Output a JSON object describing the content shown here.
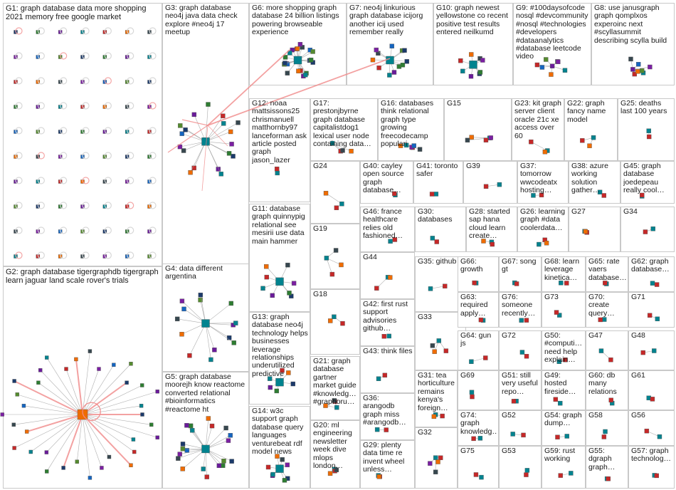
{
  "groups": [
    {
      "id": "G1",
      "title": "G1: graph database data more shopping 2021 memory free google market"
    },
    {
      "id": "G2",
      "title": "G2: graph database tigergraphdb tigergraph learn jaguar land scale rover's trials"
    },
    {
      "id": "G3",
      "title": "G3: graph database neo4j java data check explore #neo4j 17 meetup"
    },
    {
      "id": "G4",
      "title": "G4: data different argentina"
    },
    {
      "id": "G5",
      "title": "G5: graph database moorejh know reactome converted relational #bioinformatics #reactome ht"
    },
    {
      "id": "G6",
      "title": "G6: more shopping graph database 24 billion listings powering browseable experience"
    },
    {
      "id": "G7",
      "title": "G7: neo4j linkurious graph database icijorg another icij used remember really"
    },
    {
      "id": "G8",
      "title": "G8: use janusgraph graph qomplxos experoinc next #scyllasummit describing scylla build"
    },
    {
      "id": "G9",
      "title": "G9: #100daysofcode nosql #devcommunity #nosql #technologies #developers #dataanalytics #database leetcode video"
    },
    {
      "id": "G10",
      "title": "G10: graph newest yellowstone co recent positive test results entered neilkumd"
    },
    {
      "id": "G11",
      "title": "G11: database graph quinnypig relational see mesirii use data main hammer"
    },
    {
      "id": "G12",
      "title": "G12: noaa mattsissons25 chrismanuell matthornby97 lanceforman ask article posted graph jason_lazer"
    },
    {
      "id": "G13",
      "title": "G13: graph database neo4j technology helps businesses leverage relationships underutilized predictive"
    },
    {
      "id": "G14",
      "title": "G14: w3c support graph database query languages venturebeat rdf model news"
    },
    {
      "id": "G15",
      "title": "G15"
    },
    {
      "id": "G16",
      "title": "G16: databases think relational graph type growing freecodecamp populari"
    },
    {
      "id": "G17",
      "title": "G17: prestonjbyrne graph database capitalistdog1 lexical user node containing data…"
    },
    {
      "id": "G18",
      "title": "G18"
    },
    {
      "id": "G19",
      "title": "G19"
    },
    {
      "id": "G20",
      "title": "G20: ml engineering newsletter week dive mlops london…"
    },
    {
      "id": "G21",
      "title": "G21: graph database gartner market guide #knowledg… #graphoru…"
    },
    {
      "id": "G22",
      "title": "G22: graph fancy name model"
    },
    {
      "id": "G23",
      "title": "G23: kit graph server client oracle 21c xe access over 60"
    },
    {
      "id": "G24",
      "title": "G24"
    },
    {
      "id": "G25",
      "title": "G25: deaths last 100 years"
    },
    {
      "id": "G26",
      "title": "G26: learning graph #data coolerdata…"
    },
    {
      "id": "G27",
      "title": "G27"
    },
    {
      "id": "G28",
      "title": "G28: started sap hana cloud learn create…"
    },
    {
      "id": "G29",
      "title": "G29: plenty data time re invent wheel unless…"
    },
    {
      "id": "G30",
      "title": "G30: databases"
    },
    {
      "id": "G31",
      "title": "G31: tea horticulture remains kenya's foreign…"
    },
    {
      "id": "G32",
      "title": "G32"
    },
    {
      "id": "G33",
      "title": "G33"
    },
    {
      "id": "G34",
      "title": "G34"
    },
    {
      "id": "G35",
      "title": "G35: github"
    },
    {
      "id": "G36",
      "title": "G36: arangodb graph miss #arangodb…"
    },
    {
      "id": "G37",
      "title": "G37: tomorrow wwcodeatx hosting…"
    },
    {
      "id": "G38",
      "title": "G38: azure working solution gather…"
    },
    {
      "id": "G39",
      "title": "G39"
    },
    {
      "id": "G40",
      "title": "G40: cayley open source graph database…"
    },
    {
      "id": "G41",
      "title": "G41: toronto safer"
    },
    {
      "id": "G42",
      "title": "G42: first rust support advisories github…"
    },
    {
      "id": "G43",
      "title": "G43: think files"
    },
    {
      "id": "G44",
      "title": "G44"
    },
    {
      "id": "G45",
      "title": "G45: graph database joedepeau really cool…"
    },
    {
      "id": "G46",
      "title": "G46: france healthcare relies old fashioned…"
    },
    {
      "id": "G47",
      "title": "G47"
    },
    {
      "id": "G48",
      "title": "G48"
    },
    {
      "id": "G49",
      "title": "G49: hosted fireside…"
    },
    {
      "id": "G50",
      "title": "G50: #computi… need help explain…"
    },
    {
      "id": "G51",
      "title": "G51: still very useful repo…"
    },
    {
      "id": "G52",
      "title": "G52"
    },
    {
      "id": "G53",
      "title": "G53"
    },
    {
      "id": "G54",
      "title": "G54: graph dump…"
    },
    {
      "id": "G55",
      "title": "G55: dgraph graph…"
    },
    {
      "id": "G56",
      "title": "G56"
    },
    {
      "id": "G57",
      "title": "G57: graph technolog…"
    },
    {
      "id": "G58",
      "title": "G58"
    },
    {
      "id": "G59",
      "title": "G59: rust working"
    },
    {
      "id": "G60",
      "title": "G60: db many relations"
    },
    {
      "id": "G61",
      "title": "G61"
    },
    {
      "id": "G62",
      "title": "G62: graph database…"
    },
    {
      "id": "G63",
      "title": "G63: required apply…"
    },
    {
      "id": "G64",
      "title": "G64: gun js"
    },
    {
      "id": "G65",
      "title": "G65: rate vaers database…"
    },
    {
      "id": "G66",
      "title": "G66: growth"
    },
    {
      "id": "G67",
      "title": "G67: song gt"
    },
    {
      "id": "G68",
      "title": "G68: learn leverage kinetica…"
    },
    {
      "id": "G69",
      "title": "G69"
    },
    {
      "id": "G70",
      "title": "G70: create query…"
    },
    {
      "id": "G71",
      "title": "G71"
    },
    {
      "id": "G72",
      "title": "G72"
    },
    {
      "id": "G73",
      "title": "G73"
    },
    {
      "id": "G74",
      "title": "G74: graph knowledg…"
    },
    {
      "id": "G75",
      "title": "G75"
    },
    {
      "id": "G76",
      "title": "G76: someone recently…"
    }
  ],
  "colors": {
    "edge": "#9a9a9a",
    "highlight_edge": "#f08a8a",
    "panel_border": "#c9c9c9",
    "node_palette": [
      "#1b3a6b",
      "#2e7d32",
      "#6a1b9a",
      "#00838f",
      "#c62828",
      "#ef6c00",
      "#37474f",
      "#7b1fa2",
      "#1565c0",
      "#558b2f"
    ]
  }
}
